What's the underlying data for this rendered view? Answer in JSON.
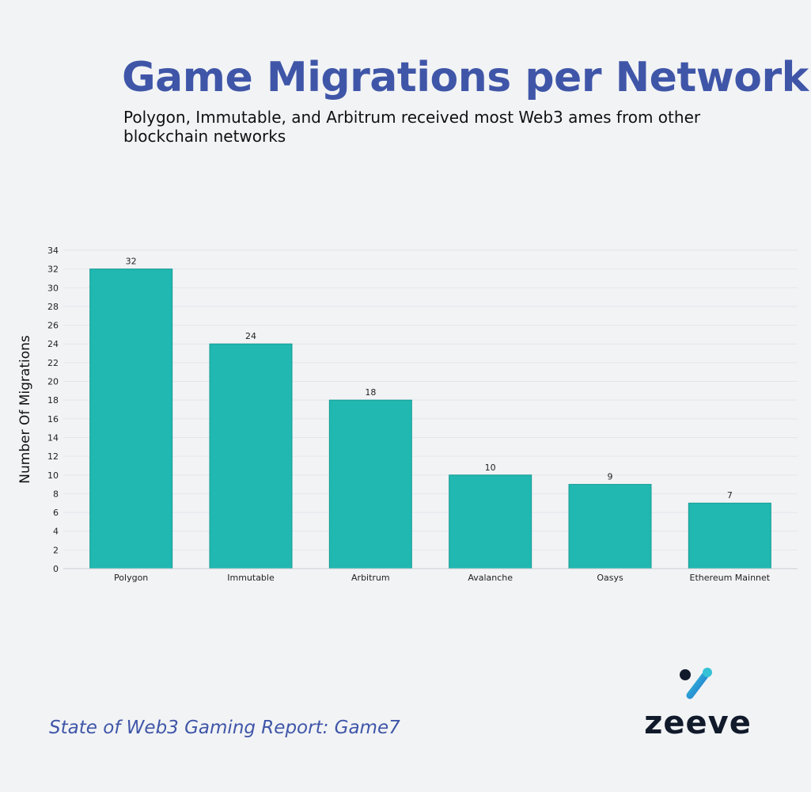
{
  "header": {
    "title": "Game Migrations per Network",
    "subtitle": "Polygon, Immutable, and Arbitrum received most Web3 ames from other blockchain networks"
  },
  "footer": {
    "source": "State of Web3 Gaming Report: Game7",
    "brand": "zeeve",
    "brand_icon": "zeeve-logo-icon"
  },
  "colors": {
    "title": "#3f56a8",
    "bar": "#20b8b0",
    "bar_edge": "#179c95",
    "grid": "#e4e6ea",
    "brand_dark": "#111a2b",
    "brand_teal": "#2bb3c9",
    "brand_blue": "#1f6fd1"
  },
  "chart_data": {
    "type": "bar",
    "categories": [
      "Polygon",
      "Immutable",
      "Arbitrum",
      "Avalanche",
      "Oasys",
      "Ethereum Mainnet"
    ],
    "values": [
      32,
      24,
      18,
      10,
      9,
      7
    ],
    "data_labels": [
      "32",
      "24",
      "18",
      "10",
      "9",
      "7"
    ],
    "ylabel": "Number Of Migrations",
    "xlabel": "",
    "ylim": [
      0,
      34
    ],
    "yticks": [
      0,
      2,
      4,
      6,
      8,
      10,
      12,
      14,
      16,
      18,
      20,
      22,
      24,
      26,
      28,
      30,
      32,
      34
    ],
    "grid": true,
    "legend": "none"
  }
}
